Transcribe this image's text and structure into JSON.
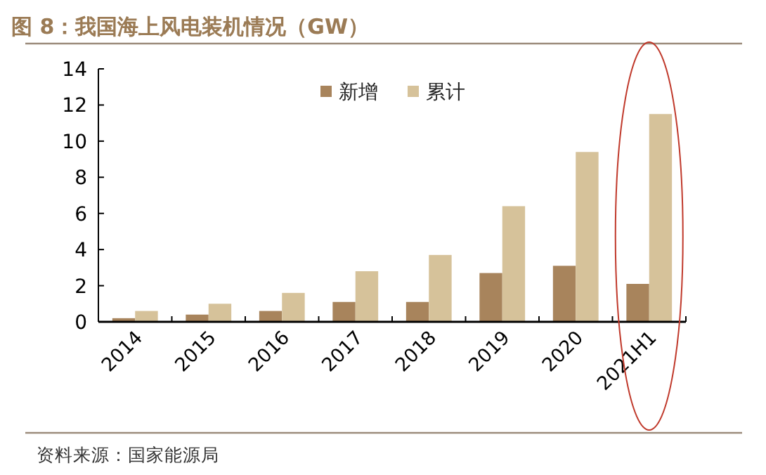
{
  "chart_data": {
    "type": "bar",
    "title": "图 8：我国海上风电装机情况（GW）",
    "categories": [
      "2014",
      "2015",
      "2016",
      "2017",
      "2018",
      "2019",
      "2020",
      "2021H1"
    ],
    "series": [
      {
        "name": "新增",
        "color": "#a8845c",
        "values": [
          0.2,
          0.4,
          0.6,
          1.1,
          1.1,
          2.7,
          3.1,
          2.1
        ]
      },
      {
        "name": "累计",
        "color": "#d6c29a",
        "values": [
          0.6,
          1.0,
          1.6,
          2.8,
          3.7,
          6.4,
          9.4,
          11.5
        ]
      }
    ],
    "ylim": [
      0,
      14
    ],
    "yticks": [
      0,
      2,
      4,
      6,
      8,
      10,
      12,
      14
    ],
    "grid": false,
    "legend": "top",
    "annotations": [
      "资料来源：国家能源局"
    ]
  }
}
